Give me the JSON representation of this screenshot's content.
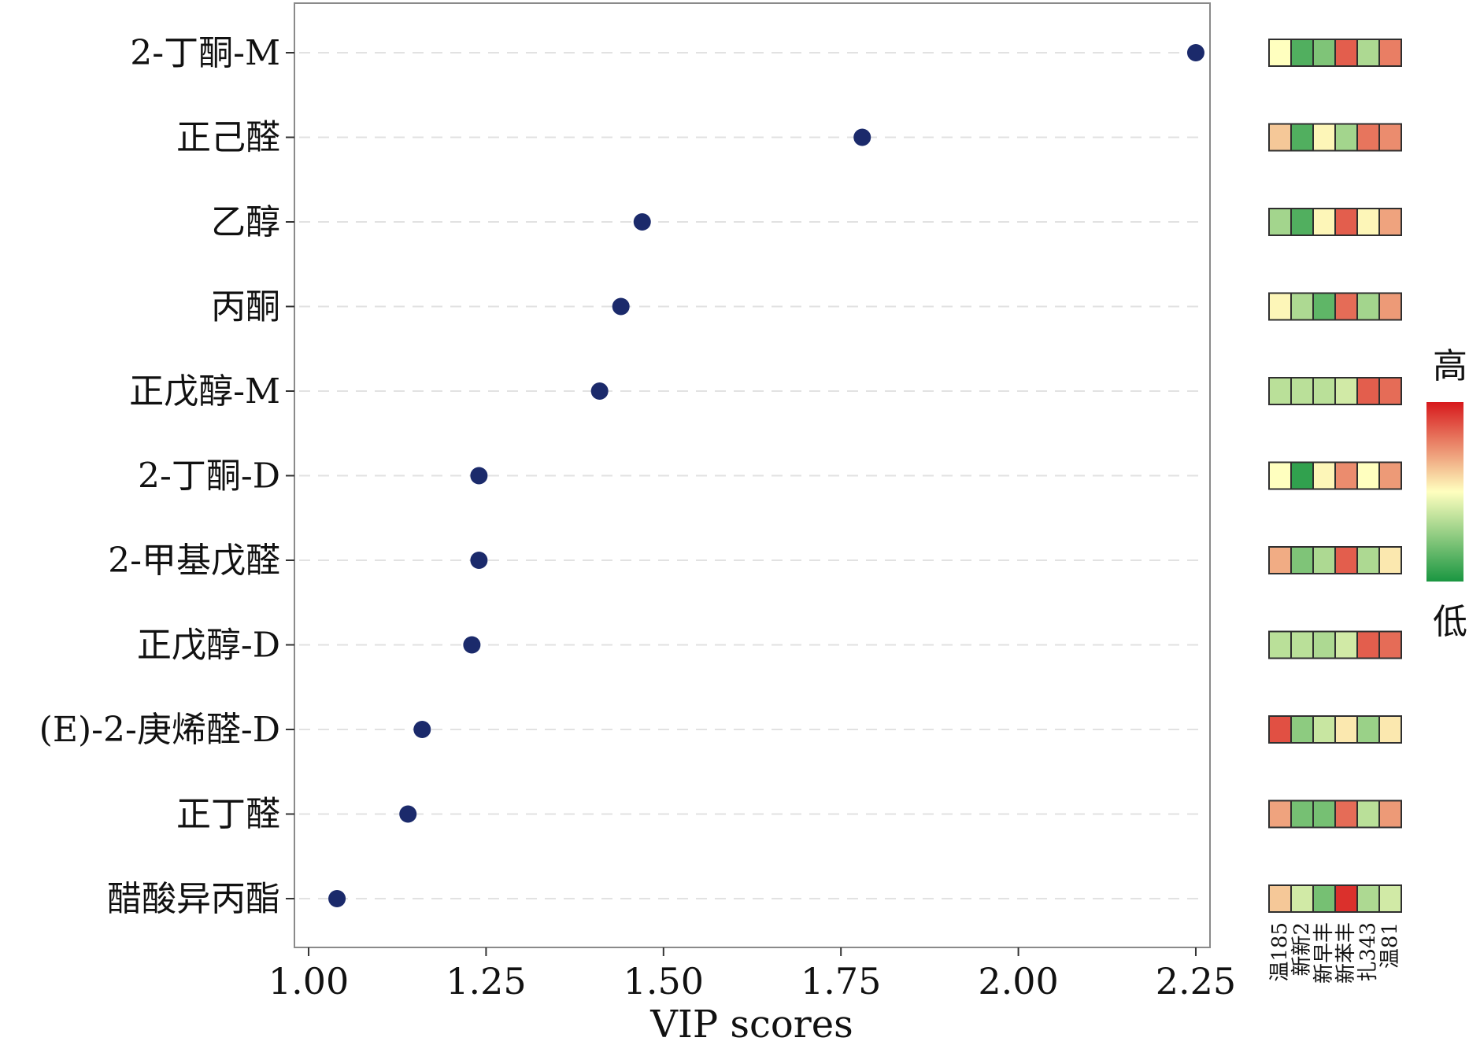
{
  "chart_data": {
    "type": "scatter",
    "x_axis": {
      "label": "VIP scores",
      "range": [
        0.98,
        2.27
      ],
      "ticks": [
        1.0,
        1.25,
        1.5,
        1.75,
        2.0,
        2.25
      ],
      "tick_labels": [
        "1.00",
        "1.25",
        "1.50",
        "1.75",
        "2.00",
        "2.25"
      ]
    },
    "grid": "horizontal dashed",
    "categories": [
      "2-丁酮-M",
      "正己醛",
      "乙醇",
      "丙酮",
      "正戊醇-M",
      "2-丁酮-D",
      "2-甲基戊醛",
      "正戊醇-D",
      "(E)-2-庚烯醛-D",
      "正丁醛",
      "醋酸异丙酯"
    ],
    "series": [
      {
        "values": [
          2.25,
          1.78,
          1.47,
          1.44,
          1.41,
          1.24,
          1.24,
          1.23,
          1.16,
          1.14,
          1.04
        ],
        "color": "#1b2a6b"
      }
    ],
    "heatmap": {
      "columns": [
        "温185",
        "新新2",
        "新早丰",
        "新苯丰",
        "扎343",
        "温81"
      ],
      "matrix": [
        [
          0.5,
          0.12,
          0.22,
          0.85,
          0.32,
          0.78
        ],
        [
          0.62,
          0.12,
          0.52,
          0.3,
          0.8,
          0.75
        ],
        [
          0.3,
          0.12,
          0.52,
          0.85,
          0.52,
          0.7
        ],
        [
          0.52,
          0.32,
          0.15,
          0.82,
          0.3,
          0.72
        ],
        [
          0.35,
          0.35,
          0.35,
          0.4,
          0.85,
          0.82
        ],
        [
          0.5,
          0.05,
          0.52,
          0.75,
          0.5,
          0.72
        ],
        [
          0.68,
          0.22,
          0.32,
          0.85,
          0.32,
          0.55
        ],
        [
          0.35,
          0.35,
          0.32,
          0.4,
          0.85,
          0.82
        ],
        [
          0.88,
          0.25,
          0.38,
          0.55,
          0.28,
          0.55
        ],
        [
          0.7,
          0.2,
          0.2,
          0.82,
          0.35,
          0.72
        ],
        [
          0.62,
          0.4,
          0.2,
          0.95,
          0.32,
          0.4
        ]
      ]
    },
    "legend": {
      "high_label": "高",
      "low_label": "低",
      "position": "right",
      "colors": [
        "#1a9641",
        "#ffffbf",
        "#d7191c"
      ]
    }
  }
}
